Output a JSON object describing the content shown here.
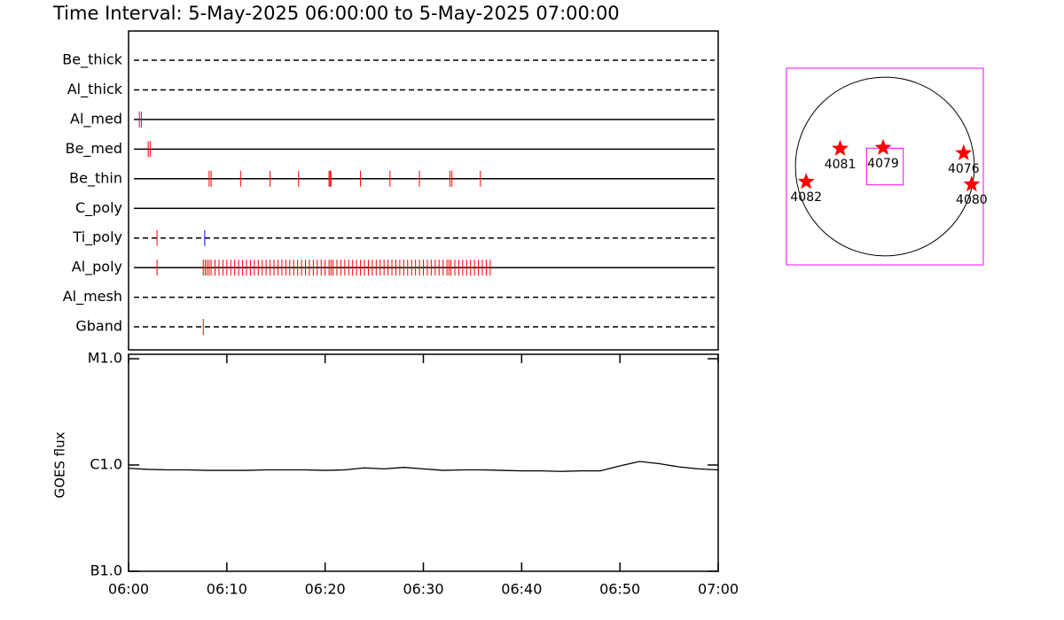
{
  "chart_data": [
    {
      "type": "timeline",
      "title": "Time Interval:  5-May-2025 06:00:00 to  5-May-2025 07:00:00",
      "xlim": [
        0,
        60
      ],
      "rows": [
        {
          "name": "Be_thick",
          "line": "dashed",
          "series": []
        },
        {
          "name": "Al_thick",
          "line": "dashed",
          "series": []
        },
        {
          "name": "Al_med",
          "line": "solid",
          "series": [
            {
              "color": "#ff0000",
              "values": [
                1.1,
                1.3
              ]
            }
          ]
        },
        {
          "name": "Be_med",
          "line": "solid",
          "series": [
            {
              "color": "#ff0000",
              "values": [
                2.0,
                2.2
              ]
            }
          ]
        },
        {
          "name": "Be_thin",
          "line": "solid",
          "series": [
            {
              "color": "#ff0000",
              "values": [
                8.2,
                8.4,
                11.4,
                14.4,
                17.3,
                20.4,
                20.5,
                20.6,
                23.6,
                26.6,
                29.6,
                32.7,
                32.9,
                35.8
              ]
            }
          ]
        },
        {
          "name": "C_poly",
          "line": "solid",
          "series": []
        },
        {
          "name": "Ti_poly",
          "line": "dashed",
          "series": [
            {
              "color": "#ff0000",
              "values": [
                2.9
              ]
            },
            {
              "color": "#0000ff",
              "values": [
                7.75
              ]
            }
          ]
        },
        {
          "name": "Al_poly",
          "line": "solid",
          "series": [
            {
              "color": "#ff0000",
              "values": [
                2.9,
                7.6,
                7.8,
                8.0,
                8.2,
                8.4,
                8.8,
                9.2,
                9.6,
                10.0,
                10.4,
                10.8,
                11.2,
                11.6,
                12.0,
                12.4,
                12.8,
                13.2,
                13.6,
                14.0,
                14.4,
                14.8,
                15.2,
                15.6,
                16.0,
                16.4,
                16.8,
                17.2,
                17.6,
                18.0,
                18.4,
                18.8,
                19.2,
                19.6,
                20.0,
                20.4,
                20.6,
                20.8,
                21.2,
                21.6,
                22.0,
                22.4,
                22.8,
                23.2,
                23.6,
                24.0,
                24.4,
                24.8,
                25.2,
                25.6,
                26.0,
                26.4,
                26.8,
                27.2,
                27.6,
                28.0,
                28.4,
                28.8,
                29.2,
                29.6,
                30.0,
                30.4,
                30.8,
                31.2,
                31.6,
                32.0,
                32.4,
                32.6,
                32.8,
                33.2,
                33.6,
                34.0,
                34.4,
                34.8,
                35.2,
                35.6,
                36.0,
                36.4,
                36.8
              ]
            }
          ]
        },
        {
          "name": "Al_mesh",
          "line": "dashed",
          "series": []
        },
        {
          "name": "Gband",
          "line": "dashed",
          "series": [
            {
              "color": "#ff0000",
              "values": [
                7.6
              ]
            }
          ]
        }
      ]
    },
    {
      "type": "line",
      "ylabel": "GOES flux",
      "log_scale": true,
      "color": "#000000",
      "x": [
        0,
        2,
        4,
        6,
        8,
        10,
        12,
        14,
        16,
        18,
        20,
        22,
        24,
        26,
        28,
        30,
        32,
        34,
        36,
        38,
        40,
        42,
        44,
        46,
        48,
        50,
        52,
        54,
        56,
        58,
        60
      ],
      "values": [
        9.3e-07,
        9.1e-07,
        9e-07,
        9e-07,
        8.9e-07,
        8.9e-07,
        8.9e-07,
        9e-07,
        9e-07,
        9e-07,
        8.9e-07,
        9e-07,
        9.4e-07,
        9.2e-07,
        9.5e-07,
        9.2e-07,
        8.9e-07,
        9e-07,
        9e-07,
        8.9e-07,
        8.8e-07,
        8.8e-07,
        8.7e-07,
        8.8e-07,
        8.8e-07,
        9.8e-07,
        1.08e-06,
        1.03e-06,
        9.6e-07,
        9.2e-07,
        9e-07
      ],
      "xlim": [
        0,
        60
      ],
      "xticks": [
        {
          "value": 0,
          "label": "06:00"
        },
        {
          "value": 10,
          "label": "06:10"
        },
        {
          "value": 20,
          "label": "06:20"
        },
        {
          "value": 30,
          "label": "06:30"
        },
        {
          "value": 40,
          "label": "06:40"
        },
        {
          "value": 50,
          "label": "06:50"
        },
        {
          "value": 60,
          "label": "07:00"
        }
      ],
      "ylim": [
        1e-07,
        1e-05
      ],
      "yticks": [
        {
          "value": 1e-07,
          "label": "B1.0"
        },
        {
          "value": 1e-06,
          "label": "C1.0"
        },
        {
          "value": 1e-05,
          "label": "M1.0"
        }
      ]
    },
    {
      "type": "scatter",
      "xlim": [
        -1.1,
        1.1
      ],
      "ylim": [
        -1.1,
        1.1
      ],
      "frame_color": "#ff00ff",
      "disk_radius": 1,
      "fov": {
        "x": 0,
        "y": 0,
        "width": 0.41,
        "height": 0.41,
        "color": "#ff00ff"
      },
      "color": "#ff0000",
      "labels": [
        "4081",
        "4079",
        "4076",
        "4082",
        "4080"
      ],
      "x": [
        -0.5,
        -0.02,
        0.88,
        -0.88,
        0.97
      ],
      "y": [
        0.2,
        0.21,
        0.15,
        -0.17,
        -0.2
      ]
    }
  ]
}
